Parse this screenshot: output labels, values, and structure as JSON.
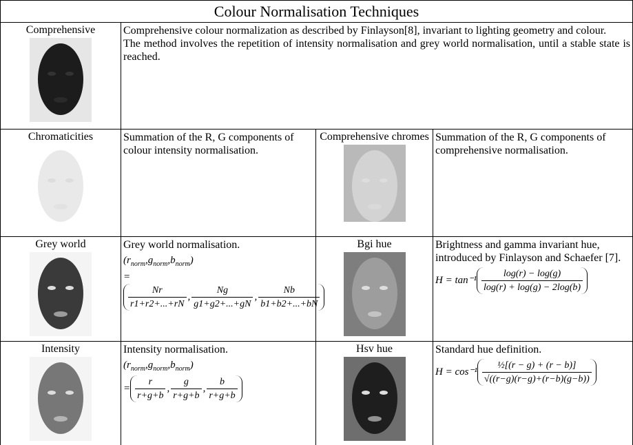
{
  "title": "Colour Normalisation Techniques",
  "cells": [
    {
      "name": "Comprehensive",
      "text": [
        "Comprehensive colour normalization as described by Finlayson[8], invariant to lighting geometry and colour.",
        "The method involves the repetition of intensity normalisation and grey world normalisation, until a stable state is reached."
      ]
    },
    {
      "name": "Chromaticities",
      "text": [
        "Summation of the R, G components of colour intensity normalisation."
      ]
    },
    {
      "name": "Comprehensive chromes",
      "text": [
        "Summation of the R, G components of comprehensive normalisation."
      ]
    },
    {
      "name": "Grey world",
      "text": [
        "Grey world normalisation."
      ],
      "formula": {
        "lhs": [
          "(",
          {
            "v": "r",
            "s": "norm"
          },
          ",",
          {
            "v": "g",
            "s": "norm"
          },
          ",",
          {
            "v": "b",
            "s": "norm"
          },
          ")"
        ],
        "eq": "=",
        "sep": ",",
        "fractions": [
          {
            "num": "Nr",
            "den": "r1+r2+...+rN"
          },
          {
            "num": "Ng",
            "den": "g1+g2+...+gN"
          },
          {
            "num": "Nb",
            "den": "b1+b2+...+bN"
          }
        ]
      }
    },
    {
      "name": "Bgi hue",
      "text": [
        "Brightness and gamma invariant hue, introduced by Finlayson and Schaefer [7]."
      ],
      "formula": {
        "prefix": "H = tan⁻¹",
        "fractions": [
          {
            "num": "log(r) − log(g)",
            "den": "log(r) + log(g) − 2log(b)"
          }
        ]
      }
    },
    {
      "name": "Intensity",
      "text": [
        "Intensity normalisation."
      ],
      "formula": {
        "lhs": [
          "(",
          {
            "v": "r",
            "s": "norm"
          },
          ",",
          {
            "v": "g",
            "s": "norm"
          },
          ",",
          {
            "v": "b",
            "s": "norm"
          },
          ")"
        ],
        "eq": "=",
        "sep": ",",
        "fractions": [
          {
            "num": "r",
            "den": "r+g+b"
          },
          {
            "num": "g",
            "den": "r+g+b"
          },
          {
            "num": "b",
            "den": "r+g+b"
          }
        ]
      }
    },
    {
      "name": "Hsv hue",
      "text": [
        "Standard hue definition."
      ],
      "formula": {
        "prefix": "H = cos⁻¹",
        "fractions": [
          {
            "num": "½[(r − g) + (r − b)]",
            "den": "√((r−g)(r−g)+(r−b)(g−b))"
          }
        ]
      }
    }
  ]
}
